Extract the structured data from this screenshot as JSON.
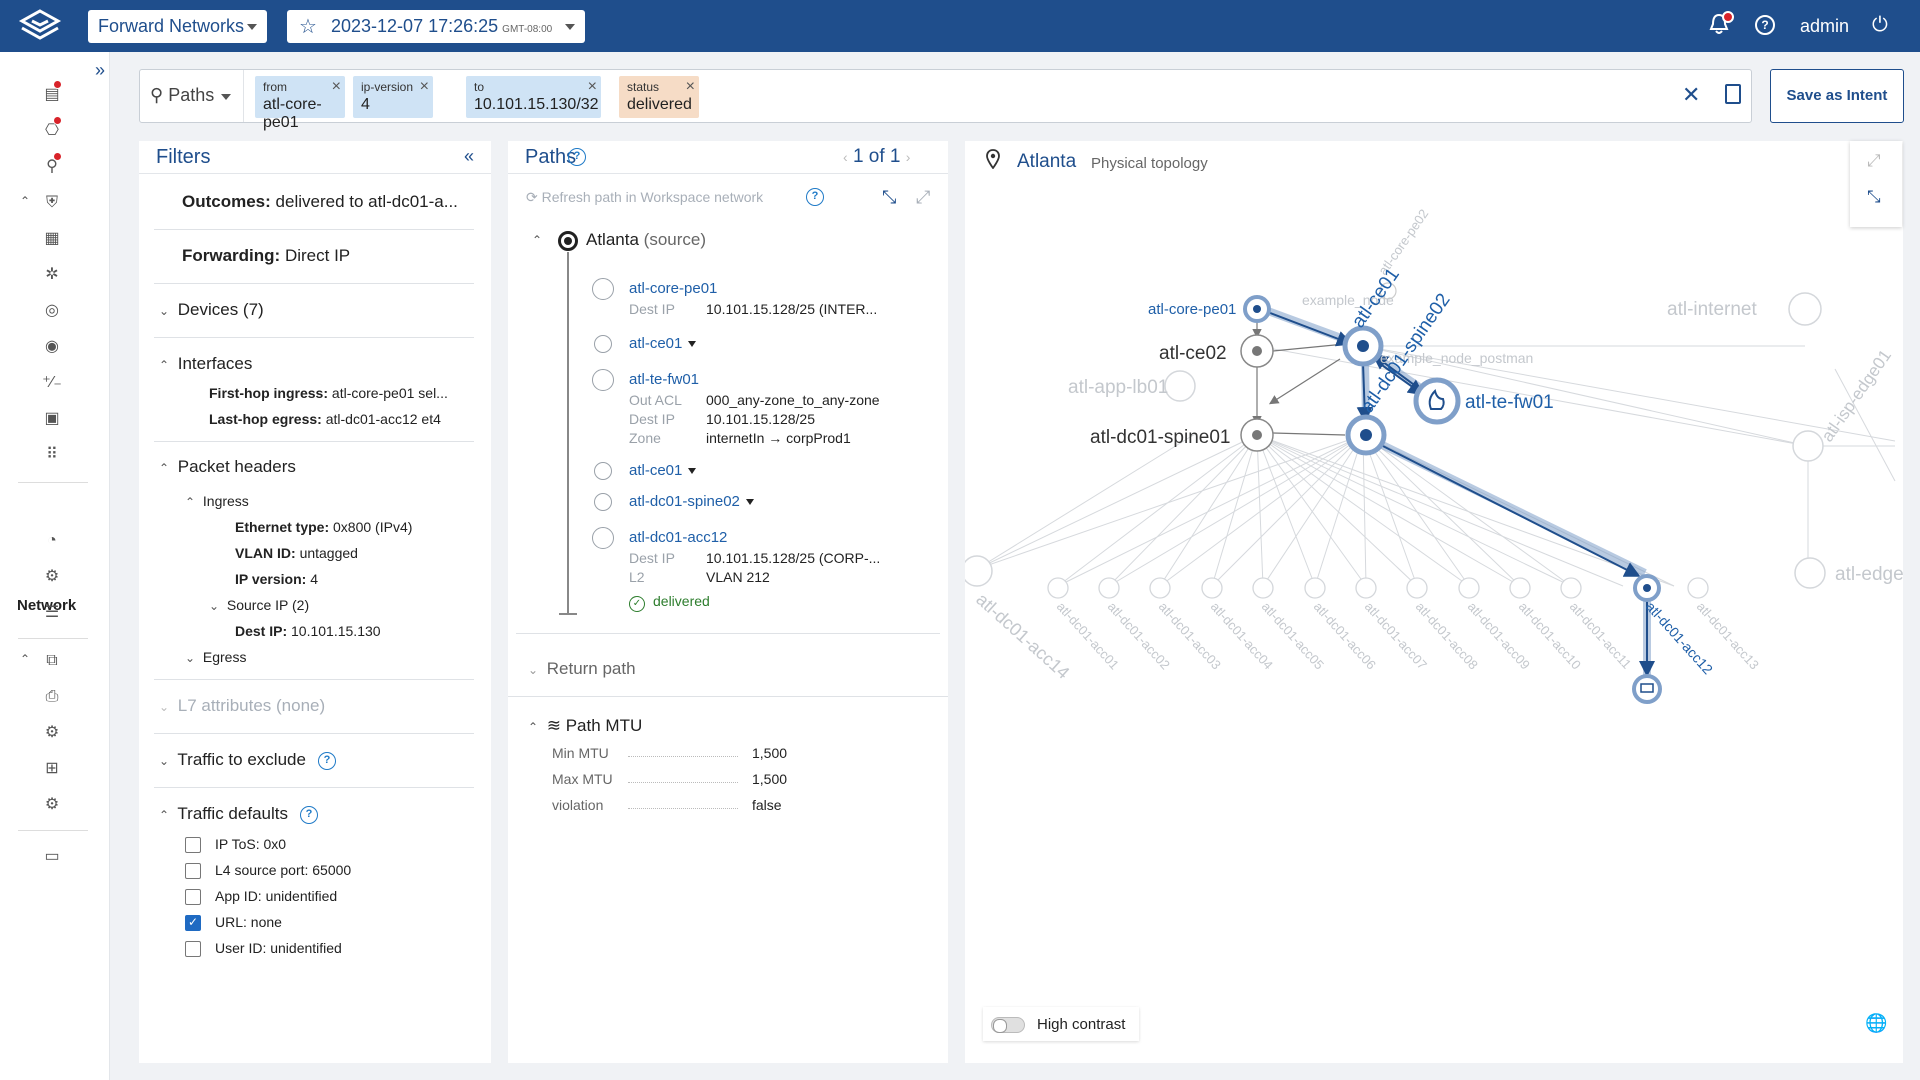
{
  "topbar": {
    "network": "Forward Networks",
    "snapshot_date": "2023-12-07",
    "snapshot_time": "17:26:25",
    "snapshot_tz": "GMT-08:00",
    "user": "admin",
    "bell_icon": "bell-icon",
    "help_icon": "help-icon",
    "power_icon": "power-icon"
  },
  "rail": {
    "section_label": "Network"
  },
  "query": {
    "mode": "Paths",
    "chips": [
      {
        "key": "from",
        "value": "atl-core-pe01"
      },
      {
        "key": "ip-version",
        "value": "4"
      },
      {
        "key": "to",
        "value": "10.101.15.130/32"
      },
      {
        "key": "status",
        "value": "delivered"
      }
    ],
    "save_label": "Save as Intent"
  },
  "filters": {
    "title": "Filters",
    "outcomes_key": "Outcomes:",
    "outcomes_val": "delivered to atl-dc01-a...",
    "forwarding_key": "Forwarding:",
    "forwarding_val": "Direct IP",
    "devices": "Devices (7)",
    "interfaces": "Interfaces",
    "first_hop_key": "First-hop ingress:",
    "first_hop_val": "atl-core-pe01 sel...",
    "last_hop_key": "Last-hop egress:",
    "last_hop_val": "atl-dc01-acc12 et4",
    "packet_headers": "Packet headers",
    "ingress": "Ingress",
    "eth_key": "Ethernet type:",
    "eth_val": "0x800  (IPv4)",
    "vlan_key": "VLAN ID:",
    "vlan_val": "untagged",
    "ipver_key": "IP version:",
    "ipver_val": "4",
    "source_ip": "Source IP (2)",
    "dest_key": "Dest IP:",
    "dest_val": "10.101.15.130",
    "egress": "Egress",
    "l7": "L7 attributes (none)",
    "traffic_exclude": "Traffic to exclude",
    "traffic_defaults": "Traffic defaults",
    "defaults": [
      {
        "label": "IP ToS: 0x0",
        "checked": false
      },
      {
        "label": "L4 source port: 65000",
        "checked": false
      },
      {
        "label": "App ID: unidentified",
        "checked": false
      },
      {
        "label": "URL: none",
        "checked": true
      },
      {
        "label": "User ID: unidentified",
        "checked": false
      }
    ]
  },
  "paths": {
    "title": "Paths",
    "pager": "1 of 1",
    "refresh": "Refresh path in Workspace network",
    "source_name": "Atlanta",
    "source_tag": "(source)",
    "hop1": "atl-core-pe01",
    "hop1_k": "Dest IP",
    "hop1_v": "10.101.15.128/25 (INTER...",
    "hop2": "atl-ce01",
    "hop3": "atl-te-fw01",
    "hop3_k1": "Out ACL",
    "hop3_v1": "000_any-zone_to_any-zone",
    "hop3_k2": "Dest IP",
    "hop3_v2": "10.101.15.128/25",
    "hop3_k3": "Zone",
    "hop3_v3": "internetIn → corpProd1",
    "hop4": "atl-ce01",
    "hop5": "atl-dc01-spine02",
    "hop6": "atl-dc01-acc12",
    "hop6_k1": "Dest IP",
    "hop6_v1": "10.101.15.128/25 (CORP-...",
    "hop6_k2": "L2",
    "hop6_v2": "VLAN 212",
    "delivered": "delivered",
    "return_path": "Return path",
    "mtu_title": "Path MTU",
    "mtu": [
      {
        "k": "Min MTU",
        "v": "1,500"
      },
      {
        "k": "Max MTU",
        "v": "1,500"
      },
      {
        "k": "violation",
        "v": "false"
      }
    ]
  },
  "topology": {
    "title": "Atlanta",
    "subtitle": "Physical topology",
    "high_contrast": "High contrast",
    "nodes": {
      "core_pe01": "atl-core-pe01",
      "core_pe02": "atl-core-pe02",
      "example_node": "example_node",
      "ce01": "atl-ce01",
      "ce02": "atl-ce02",
      "spine02": "atl-dc01-spine02",
      "postman": "example_node_postman",
      "app_lb01": "atl-app-lb01",
      "te_fw01": "atl-te-fw01",
      "spine01": "atl-dc01-spine01",
      "internet": "atl-internet",
      "isp_edge01": "atl-isp-edge01",
      "edge": "atl-edge",
      "acc14": "atl-dc01-acc14",
      "acc": [
        "atl-dc01-acc01",
        "atl-dc01-acc02",
        "atl-dc01-acc03",
        "atl-dc01-acc04",
        "atl-dc01-acc05",
        "atl-dc01-acc06",
        "atl-dc01-acc07",
        "atl-dc01-acc08",
        "atl-dc01-acc09",
        "atl-dc01-acc10",
        "atl-dc01-acc11"
      ],
      "acc12": "atl-dc01-acc12",
      "acc13": "atl-dc01-acc13"
    }
  }
}
